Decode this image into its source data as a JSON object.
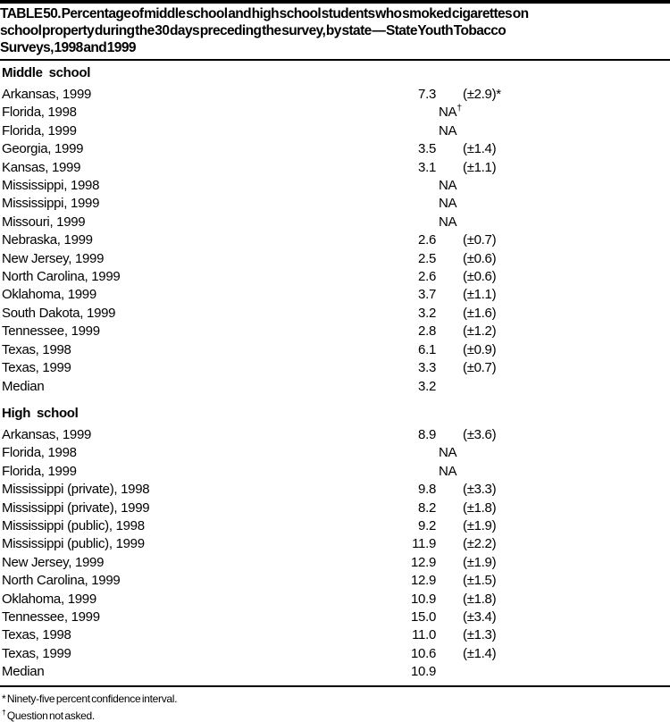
{
  "page": {
    "background": "#ffffff",
    "text_color": "#000000",
    "rule_color": "#000000"
  },
  "title_lines": [
    "TABLE 50. Percentage of middle school and high school students who smoked cigarettes on",
    "school property during the 30 days preceding the survey, by state — State Youth Tobacco",
    "Surveys, 1998 and 1999"
  ],
  "sections": [
    {
      "label": "Middle school",
      "rows": [
        {
          "state": "Arkansas, 1999",
          "value": "7.3",
          "na": "",
          "ci": "(±2.9)*"
        },
        {
          "state": "Florida, 1998",
          "value": "",
          "na": "NA†",
          "ci": ""
        },
        {
          "state": "Florida, 1999",
          "value": "",
          "na": "NA",
          "ci": ""
        },
        {
          "state": "Georgia, 1999",
          "value": "3.5",
          "na": "",
          "ci": "(±1.4)"
        },
        {
          "state": "Kansas, 1999",
          "value": "3.1",
          "na": "",
          "ci": "(±1.1)"
        },
        {
          "state": "Mississippi, 1998",
          "value": "",
          "na": "NA",
          "ci": ""
        },
        {
          "state": "Mississippi, 1999",
          "value": "",
          "na": "NA",
          "ci": ""
        },
        {
          "state": "Missouri, 1999",
          "value": "",
          "na": "NA",
          "ci": ""
        },
        {
          "state": "Nebraska, 1999",
          "value": "2.6",
          "na": "",
          "ci": "(±0.7)"
        },
        {
          "state": "New Jersey, 1999",
          "value": "2.5",
          "na": "",
          "ci": "(±0.6)"
        },
        {
          "state": "North Carolina, 1999",
          "value": "2.6",
          "na": "",
          "ci": "(±0.6)"
        },
        {
          "state": "Oklahoma, 1999",
          "value": "3.7",
          "na": "",
          "ci": "(±1.1)"
        },
        {
          "state": "South Dakota, 1999",
          "value": "3.2",
          "na": "",
          "ci": "(±1.6)"
        },
        {
          "state": "Tennessee, 1999",
          "value": "2.8",
          "na": "",
          "ci": "(±1.2)"
        },
        {
          "state": "Texas, 1998",
          "value": "6.1",
          "na": "",
          "ci": "(±0.9)"
        },
        {
          "state": "Texas, 1999",
          "value": "3.3",
          "na": "",
          "ci": "(±0.7)"
        },
        {
          "state": "Median",
          "value": "3.2",
          "na": "",
          "ci": ""
        }
      ]
    },
    {
      "label": "High school",
      "rows": [
        {
          "state": "Arkansas, 1999",
          "value": "8.9",
          "na": "",
          "ci": "(±3.6)"
        },
        {
          "state": "Florida, 1998",
          "value": "",
          "na": "NA",
          "ci": ""
        },
        {
          "state": "Florida, 1999",
          "value": "",
          "na": "NA",
          "ci": ""
        },
        {
          "state": "Mississippi (private), 1998",
          "value": "9.8",
          "na": "",
          "ci": "(±3.3)"
        },
        {
          "state": "Mississippi (private), 1999",
          "value": "8.2",
          "na": "",
          "ci": "(±1.8)"
        },
        {
          "state": "Mississippi (public), 1998",
          "value": "9.2",
          "na": "",
          "ci": "(±1.9)"
        },
        {
          "state": "Mississippi (public), 1999",
          "value": "11.9",
          "na": "",
          "ci": "(±2.2)"
        },
        {
          "state": "New Jersey, 1999",
          "value": "12.9",
          "na": "",
          "ci": "(±1.9)"
        },
        {
          "state": "North Carolina, 1999",
          "value": "12.9",
          "na": "",
          "ci": "(±1.5)"
        },
        {
          "state": "Oklahoma, 1999",
          "value": "10.9",
          "na": "",
          "ci": "(±1.8)"
        },
        {
          "state": "Tennessee, 1999",
          "value": "15.0",
          "na": "",
          "ci": "(±3.4)"
        },
        {
          "state": "Texas, 1998",
          "value": "11.0",
          "na": "",
          "ci": "(±1.3)"
        },
        {
          "state": "Texas, 1999",
          "value": "10.6",
          "na": "",
          "ci": "(±1.4)"
        },
        {
          "state": "Median",
          "value": "10.9",
          "na": "",
          "ci": ""
        }
      ]
    }
  ],
  "footnotes": [
    "* Ninety-five percent confidence interval.",
    "† Question not asked."
  ]
}
